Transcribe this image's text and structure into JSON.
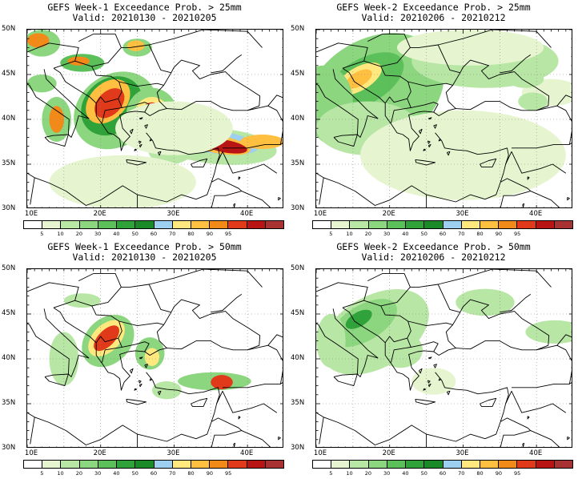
{
  "panels": [
    {
      "title": "GEFS Week-1 Exceedance Prob. > 25mm",
      "valid": "Valid: 20210130 - 20210205",
      "variant": "w1_25"
    },
    {
      "title": "GEFS Week-2 Exceedance Prob. > 25mm",
      "valid": "Valid: 20210206 - 20210212",
      "variant": "w2_25"
    },
    {
      "title": "GEFS Week-1 Exceedance Prob. > 50mm",
      "valid": "Valid: 20210130 - 20210205",
      "variant": "w1_50"
    },
    {
      "title": "GEFS Week-2 Exceedance Prob. > 50mm",
      "valid": "Valid: 20210206 - 20210212",
      "variant": "w2_50"
    }
  ],
  "lat_labels": [
    "50N",
    "45N",
    "40N",
    "35N",
    "30N"
  ],
  "lon_labels": [
    "10E",
    "20E",
    "30E",
    "40E"
  ],
  "colorbar": {
    "labels": [
      "5",
      "10",
      "20",
      "30",
      "40",
      "50",
      "60",
      "70",
      "80",
      "90",
      "95"
    ],
    "colors": [
      "#ffffff",
      "#e6f5d0",
      "#b8e6a5",
      "#8cd67f",
      "#5cc05a",
      "#2fa33a",
      "#1a8a28",
      "#9ccff0",
      "#ffe97f",
      "#ffbf40",
      "#f28a1a",
      "#e03a1a",
      "#b81414",
      "#a83232"
    ]
  }
}
